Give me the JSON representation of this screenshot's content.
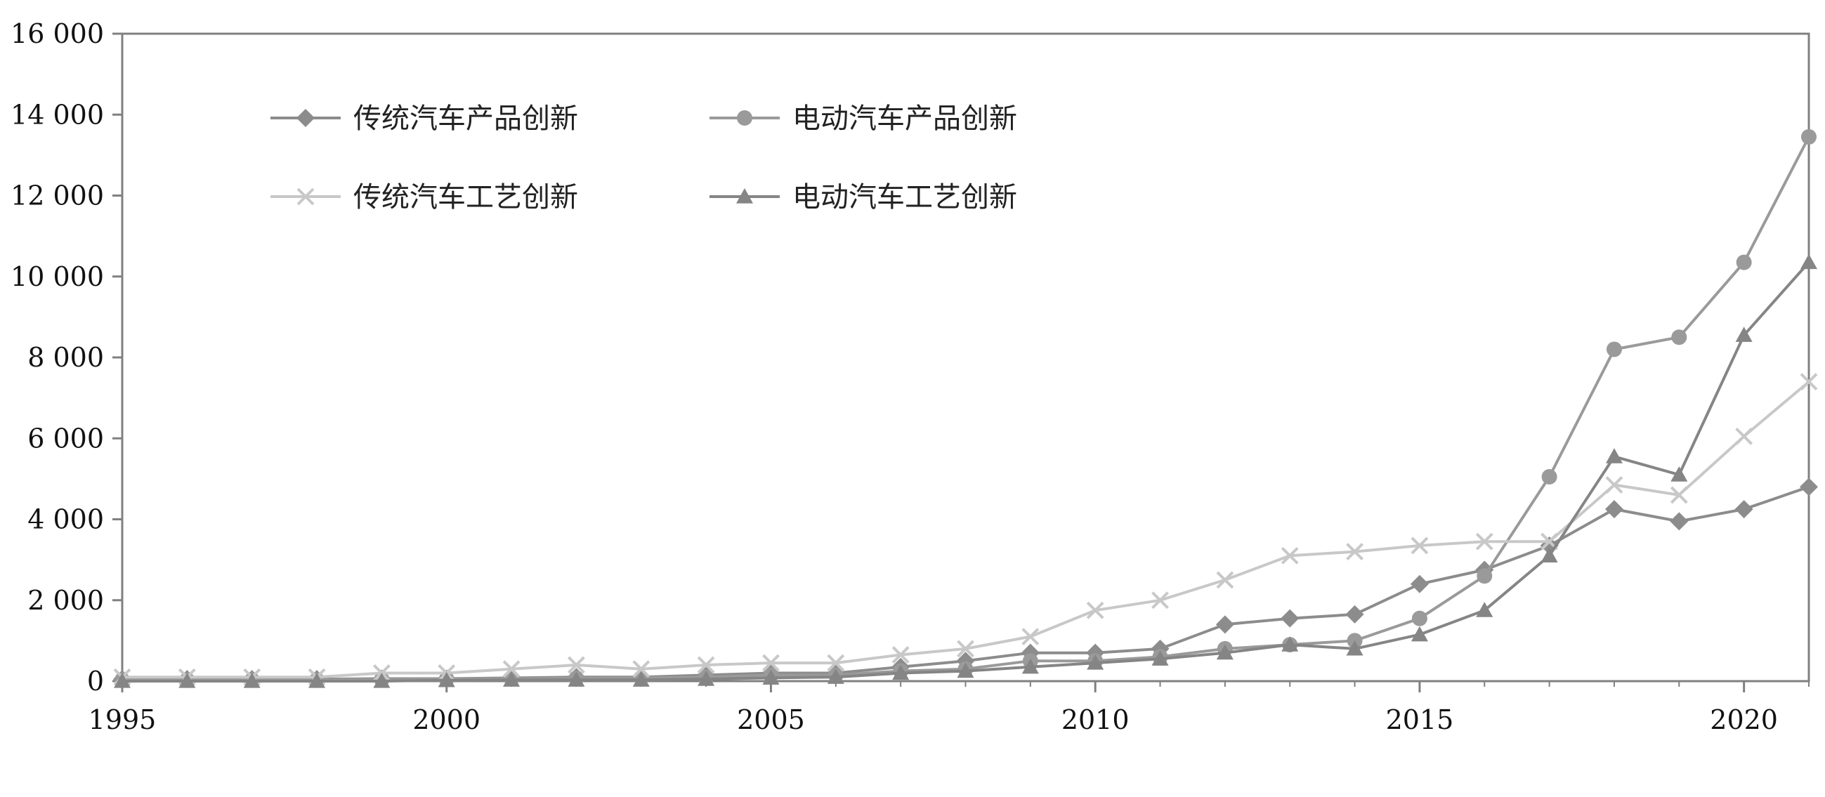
{
  "chart_data": {
    "type": "line",
    "title": "",
    "xlabel": "",
    "ylabel": "",
    "xlim": [
      1995,
      2021
    ],
    "ylim": [
      0,
      16000
    ],
    "x_ticks": [
      1995,
      2000,
      2005,
      2010,
      2015,
      2020
    ],
    "x_tick_labels": [
      "1995",
      "2000",
      "2005",
      "2010",
      "2015",
      "2020"
    ],
    "y_ticks": [
      0,
      2000,
      4000,
      6000,
      8000,
      10000,
      12000,
      14000,
      16000
    ],
    "y_tick_labels": [
      "0",
      "2 000",
      "4 000",
      "6 000",
      "8 000",
      "10 000",
      "12 000",
      "14 000",
      "16 000"
    ],
    "grid": false,
    "legend_position": "top-left",
    "x": [
      1995,
      1996,
      1997,
      1998,
      1999,
      2000,
      2001,
      2002,
      2003,
      2004,
      2005,
      2006,
      2007,
      2008,
      2009,
      2010,
      2011,
      2012,
      2013,
      2014,
      2015,
      2016,
      2017,
      2018,
      2019,
      2020,
      2021
    ],
    "series": [
      {
        "name": "传统汽车产品创新",
        "marker": "diamond",
        "color": "#8c8c8c",
        "values": [
          50,
          50,
          50,
          50,
          60,
          60,
          80,
          100,
          100,
          150,
          200,
          200,
          350,
          500,
          700,
          700,
          800,
          1400,
          1550,
          1650,
          2400,
          2750,
          3350,
          4250,
          3950,
          4250,
          4800
        ]
      },
      {
        "name": "电动汽车产品创新",
        "marker": "circle",
        "color": "#9a9a9a",
        "values": [
          30,
          30,
          30,
          30,
          40,
          50,
          60,
          70,
          80,
          100,
          150,
          150,
          250,
          300,
          500,
          500,
          600,
          800,
          900,
          1000,
          1550,
          2600,
          5050,
          8200,
          8500,
          10350,
          13450
        ]
      },
      {
        "name": "传统汽车工艺创新",
        "marker": "x",
        "color": "#c8c8c8",
        "values": [
          100,
          100,
          100,
          100,
          200,
          200,
          300,
          400,
          300,
          400,
          450,
          450,
          650,
          800,
          1100,
          1750,
          2000,
          2500,
          3100,
          3200,
          3350,
          3450,
          3450,
          4850,
          4600,
          6050,
          7400
        ]
      },
      {
        "name": "电动汽车工艺创新",
        "marker": "triangle",
        "color": "#858585",
        "values": [
          0,
          0,
          0,
          0,
          0,
          20,
          30,
          30,
          30,
          50,
          80,
          100,
          200,
          250,
          350,
          450,
          550,
          700,
          900,
          800,
          1150,
          1750,
          3100,
          5550,
          5100,
          8550,
          10350
        ]
      }
    ]
  }
}
